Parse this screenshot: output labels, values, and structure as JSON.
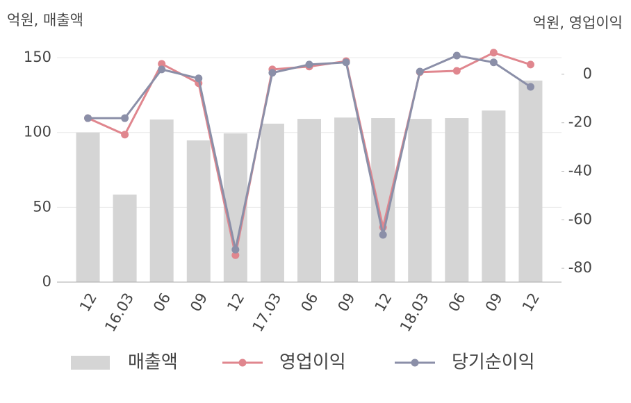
{
  "chart_data": {
    "type": "bar_line",
    "y_label": "억원, 매출액",
    "y2_label": "억원, 영업이익",
    "categories": [
      "12",
      "16.03",
      "06",
      "09",
      "12",
      "17.03",
      "06",
      "09",
      "12",
      "18.03",
      "06",
      "09",
      "12"
    ],
    "series": [
      {
        "name": "매출액",
        "color": "#d5d5d5",
        "type": "bar",
        "values": [
          100,
          58.5,
          108.7,
          94.7,
          99.4,
          105.9,
          109.1,
          110,
          109.6,
          109.1,
          109.6,
          114.7,
          134.7
        ]
      },
      {
        "name": "영업이익",
        "color": "#e0868e",
        "type": "line",
        "axis": "y2",
        "values": [
          -18.1,
          -24.9,
          4.3,
          -3.7,
          -74.6,
          2.0,
          3.2,
          5.4,
          -63.1,
          0.9,
          1.4,
          8.9,
          4.0
        ]
      },
      {
        "name": "당기순이익",
        "color": "#8b8fa8",
        "type": "line",
        "axis": "y2",
        "values": [
          -18.1,
          -18.1,
          2.0,
          -1.7,
          -72.3,
          0.6,
          4.0,
          4.9,
          -66.2,
          1.1,
          7.7,
          4.9,
          -5.2
        ]
      }
    ],
    "ylim": [
      0,
      160
    ],
    "yticks": [
      0,
      50,
      100,
      150
    ],
    "y2lim": [
      -85.7,
      13
    ],
    "y2ticks": [
      -80,
      -60,
      -40,
      -20,
      0
    ],
    "grid": true
  }
}
